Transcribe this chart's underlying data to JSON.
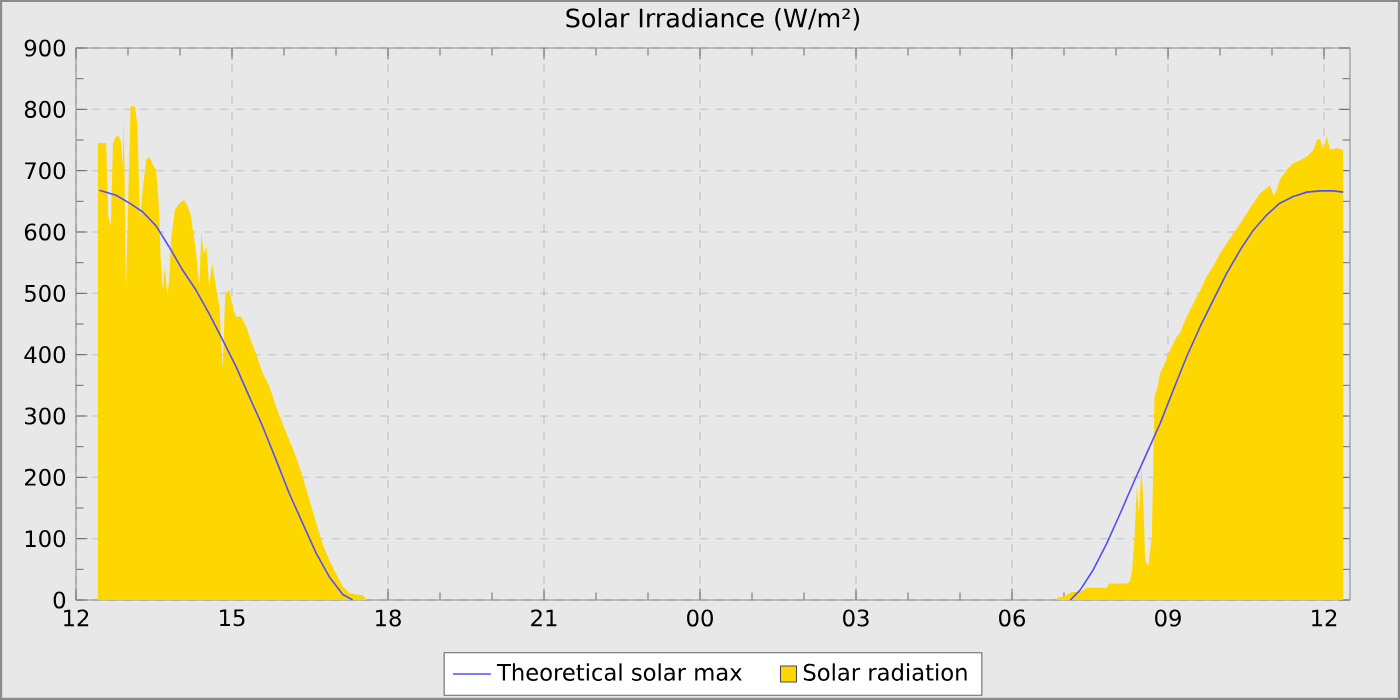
{
  "chart_data": {
    "type": "line",
    "title": "Solar Irradiance (W/m²)",
    "xlim": [
      12,
      36.5
    ],
    "xticks": [
      {
        "value": 12,
        "label": "12"
      },
      {
        "value": 15,
        "label": "15"
      },
      {
        "value": 18,
        "label": "18"
      },
      {
        "value": 21,
        "label": "21"
      },
      {
        "value": 24,
        "label": "00"
      },
      {
        "value": 27,
        "label": "03"
      },
      {
        "value": 30,
        "label": "06"
      },
      {
        "value": 33,
        "label": "09"
      },
      {
        "value": 36,
        "label": "12"
      }
    ],
    "ylim": [
      0,
      900
    ],
    "yticks": [
      0,
      100,
      200,
      300,
      400,
      500,
      600,
      700,
      800,
      900
    ],
    "grid": true,
    "legend": "bottom",
    "series": [
      {
        "name": "Theoretical solar max",
        "color": "#5050ff",
        "x": [
          12.45,
          12.77,
          13.03,
          13.28,
          13.54,
          13.79,
          14.05,
          14.31,
          14.56,
          14.82,
          15.08,
          15.33,
          15.59,
          15.85,
          16.1,
          16.36,
          16.62,
          16.87,
          17.13,
          17.32,
          24,
          31.12,
          31.31,
          31.56,
          31.82,
          32.08,
          32.33,
          32.59,
          32.85,
          33.1,
          33.36,
          33.62,
          33.87,
          34.13,
          34.39,
          34.64,
          34.9,
          35.15,
          35.41,
          35.67,
          35.92,
          36.18,
          36.37
        ],
        "values": [
          668,
          660,
          647,
          633,
          610,
          576,
          538,
          505,
          467,
          424,
          380,
          332,
          283,
          228,
          174,
          125,
          76,
          38,
          9,
          0,
          null,
          0,
          16,
          49,
          92,
          141,
          190,
          239,
          288,
          342,
          397,
          446,
          489,
          533,
          571,
          603,
          628,
          647,
          658,
          665,
          667,
          667,
          665
        ]
      },
      {
        "name": "Solar radiation",
        "type": "area",
        "color": "#ffd700",
        "x": [
          12.42,
          12.51,
          12.58,
          12.62,
          12.67,
          12.71,
          12.77,
          12.83,
          12.87,
          12.9,
          12.92,
          12.96,
          13.05,
          13.13,
          13.18,
          13.23,
          13.28,
          13.35,
          13.41,
          13.47,
          13.54,
          13.59,
          13.63,
          13.67,
          13.71,
          13.76,
          13.79,
          13.83,
          13.9,
          13.99,
          14.08,
          14.15,
          14.21,
          14.26,
          14.31,
          14.37,
          14.41,
          14.46,
          14.51,
          14.56,
          14.62,
          14.69,
          14.76,
          14.82,
          14.87,
          14.95,
          15.03,
          15.08,
          15.18,
          15.27,
          15.36,
          15.46,
          15.59,
          15.72,
          15.85,
          15.97,
          16.1,
          16.23,
          16.36,
          16.49,
          16.62,
          16.74,
          16.87,
          17.0,
          17.13,
          17.26,
          17.38,
          17.51,
          17.6,
          30.85,
          30.89,
          31.01,
          31.14,
          31.31,
          31.44,
          31.82,
          31.86,
          32.21,
          32.27,
          32.31,
          32.36,
          32.4,
          32.44,
          32.49,
          32.53,
          32.56,
          32.62,
          32.69,
          32.74,
          32.8,
          32.85,
          32.91,
          32.96,
          33.04,
          33.1,
          33.17,
          33.23,
          33.3,
          33.36,
          33.49,
          33.62,
          33.74,
          33.87,
          34.0,
          34.13,
          34.26,
          34.39,
          34.51,
          34.64,
          34.77,
          34.9,
          34.96,
          35.03,
          35.09,
          35.15,
          35.28,
          35.41,
          35.54,
          35.67,
          35.8,
          35.86,
          35.92,
          35.99,
          36.05,
          36.12,
          36.24,
          36.37
        ],
        "values": [
          745,
          745,
          745,
          626,
          610,
          745,
          756,
          756,
          745,
          707,
          789,
          505,
          805,
          805,
          777,
          620,
          668,
          717,
          723,
          711,
          701,
          647,
          554,
          505,
          544,
          495,
          522,
          587,
          636,
          647,
          652,
          641,
          626,
          597,
          565,
          511,
          597,
          565,
          576,
          511,
          549,
          511,
          478,
          375,
          500,
          505,
          473,
          462,
          462,
          446,
          424,
          402,
          370,
          348,
          315,
          288,
          261,
          234,
          201,
          163,
          125,
          92,
          65,
          43,
          22,
          11,
          9,
          8,
          0,
          0,
          5,
          6,
          13,
          13,
          20,
          20,
          27,
          27,
          30,
          49,
          109,
          185,
          141,
          218,
          152,
          65,
          55,
          104,
          332,
          348,
          370,
          380,
          391,
          408,
          418,
          430,
          435,
          451,
          462,
          484,
          505,
          527,
          544,
          565,
          582,
          598,
          614,
          630,
          647,
          663,
          672,
          676,
          659,
          668,
          685,
          701,
          712,
          717,
          723,
          734,
          750,
          752,
          734,
          756,
          734,
          737,
          734
        ]
      }
    ]
  }
}
